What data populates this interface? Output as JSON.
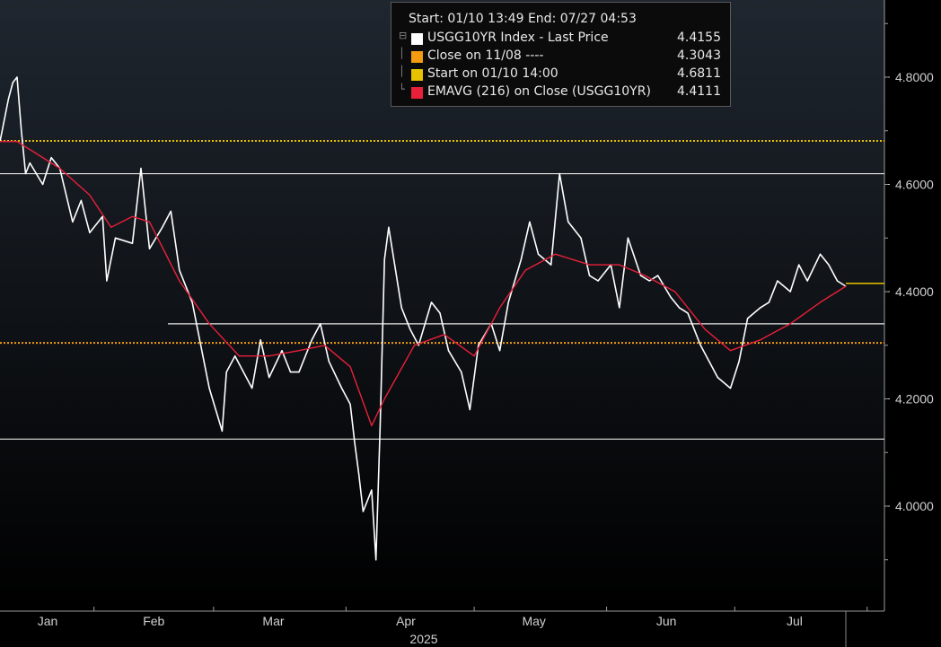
{
  "legend": {
    "header": "Start: 01/10 13:49 End: 07/27 04:53",
    "items": [
      {
        "name": "USGG10YR Index - Last Price",
        "value": "4.4155",
        "color": "#ffffff"
      },
      {
        "name": "Close on 11/08 ----",
        "value": "4.3043",
        "color": "#f39c12"
      },
      {
        "name": "Start on 01/10 14:00",
        "value": "4.6811",
        "color": "#e6c200"
      },
      {
        "name": "EMAVG (216)  on Close (USGG10YR)",
        "value": "4.4111",
        "color": "#e8203a"
      }
    ]
  },
  "chart_data": {
    "type": "line",
    "title": "",
    "xlabel": "2025",
    "ylabel": "",
    "ylim": [
      3.85,
      4.94
    ],
    "y_ticks": [
      "4.0000",
      "4.2000",
      "4.4000",
      "4.6000",
      "4.8000"
    ],
    "x_ticks": [
      "Jan",
      "Feb",
      "Mar",
      "Apr",
      "May",
      "Jun",
      "Jul"
    ],
    "x_year": "2025",
    "grid": false,
    "series": [
      {
        "name": "USGG10YR Index - Last Price",
        "color": "#ffffff",
        "x": [
          "2025-01-10",
          "2025-01-12",
          "2025-01-13",
          "2025-01-14",
          "2025-01-15",
          "2025-01-16",
          "2025-01-17",
          "2025-01-20",
          "2025-01-22",
          "2025-01-24",
          "2025-01-27",
          "2025-01-29",
          "2025-01-31",
          "2025-02-03",
          "2025-02-04",
          "2025-02-06",
          "2025-02-10",
          "2025-02-12",
          "2025-02-14",
          "2025-02-17",
          "2025-02-19",
          "2025-02-21",
          "2025-02-24",
          "2025-02-26",
          "2025-02-28",
          "2025-03-03",
          "2025-03-04",
          "2025-03-06",
          "2025-03-10",
          "2025-03-12",
          "2025-03-14",
          "2025-03-17",
          "2025-03-19",
          "2025-03-21",
          "2025-03-24",
          "2025-03-26",
          "2025-03-28",
          "2025-03-31",
          "2025-04-02",
          "2025-04-03",
          "2025-04-04",
          "2025-04-05",
          "2025-04-07",
          "2025-04-08",
          "2025-04-09",
          "2025-04-10",
          "2025-04-11",
          "2025-04-14",
          "2025-04-16",
          "2025-04-18",
          "2025-04-21",
          "2025-04-23",
          "2025-04-25",
          "2025-04-28",
          "2025-04-30",
          "2025-05-02",
          "2025-05-05",
          "2025-05-07",
          "2025-05-09",
          "2025-05-12",
          "2025-05-14",
          "2025-05-16",
          "2025-05-19",
          "2025-05-21",
          "2025-05-23",
          "2025-05-26",
          "2025-05-28",
          "2025-05-30",
          "2025-06-02",
          "2025-06-04",
          "2025-06-06",
          "2025-06-09",
          "2025-06-11",
          "2025-06-13",
          "2025-06-16",
          "2025-06-18",
          "2025-06-20",
          "2025-06-23",
          "2025-06-25",
          "2025-06-27",
          "2025-06-30",
          "2025-07-02",
          "2025-07-04",
          "2025-07-07",
          "2025-07-09",
          "2025-07-11",
          "2025-07-14",
          "2025-07-16",
          "2025-07-18",
          "2025-07-21",
          "2025-07-23",
          "2025-07-25",
          "2025-07-27"
        ],
        "values": [
          4.68,
          4.76,
          4.79,
          4.8,
          4.7,
          4.62,
          4.64,
          4.6,
          4.65,
          4.63,
          4.53,
          4.57,
          4.51,
          4.54,
          4.42,
          4.5,
          4.49,
          4.63,
          4.48,
          4.52,
          4.55,
          4.44,
          4.38,
          4.3,
          4.22,
          4.14,
          4.25,
          4.28,
          4.22,
          4.31,
          4.24,
          4.29,
          4.25,
          4.25,
          4.31,
          4.34,
          4.27,
          4.22,
          4.19,
          4.12,
          4.06,
          3.99,
          4.03,
          3.9,
          4.15,
          4.46,
          4.52,
          4.37,
          4.33,
          4.3,
          4.38,
          4.36,
          4.29,
          4.25,
          4.18,
          4.3,
          4.34,
          4.29,
          4.38,
          4.46,
          4.53,
          4.47,
          4.45,
          4.62,
          4.53,
          4.5,
          4.43,
          4.42,
          4.45,
          4.37,
          4.5,
          4.43,
          4.42,
          4.43,
          4.39,
          4.37,
          4.36,
          4.3,
          4.27,
          4.24,
          4.22,
          4.27,
          4.35,
          4.37,
          4.38,
          4.42,
          4.4,
          4.45,
          4.42,
          4.47,
          4.45,
          4.42,
          4.41
        ]
      },
      {
        "name": "EMAVG (216)  on Close (USGG10YR)",
        "color": "#e8203a",
        "x": [
          "2025-01-10",
          "2025-01-14",
          "2025-01-18",
          "2025-01-24",
          "2025-01-31",
          "2025-02-05",
          "2025-02-10",
          "2025-02-14",
          "2025-02-21",
          "2025-02-28",
          "2025-03-07",
          "2025-03-14",
          "2025-03-21",
          "2025-03-27",
          "2025-04-02",
          "2025-04-07",
          "2025-04-10",
          "2025-04-17",
          "2025-04-24",
          "2025-05-01",
          "2025-05-07",
          "2025-05-13",
          "2025-05-20",
          "2025-05-28",
          "2025-06-04",
          "2025-06-10",
          "2025-06-17",
          "2025-06-24",
          "2025-06-30",
          "2025-07-07",
          "2025-07-14",
          "2025-07-21",
          "2025-07-27"
        ],
        "values": [
          4.68,
          4.68,
          4.66,
          4.63,
          4.58,
          4.52,
          4.54,
          4.53,
          4.42,
          4.34,
          4.28,
          4.28,
          4.29,
          4.3,
          4.26,
          4.15,
          4.2,
          4.3,
          4.32,
          4.28,
          4.37,
          4.44,
          4.47,
          4.45,
          4.45,
          4.43,
          4.4,
          4.33,
          4.29,
          4.31,
          4.34,
          4.38,
          4.41
        ]
      }
    ],
    "reference_lines": [
      {
        "name": "Start on 01/10 14:00",
        "value": 4.6811,
        "color": "#e6c200",
        "style": "dotted"
      },
      {
        "name": "Close on 11/08 ----",
        "value": 4.3043,
        "color": "#f39c12",
        "style": "dotted"
      }
    ]
  }
}
